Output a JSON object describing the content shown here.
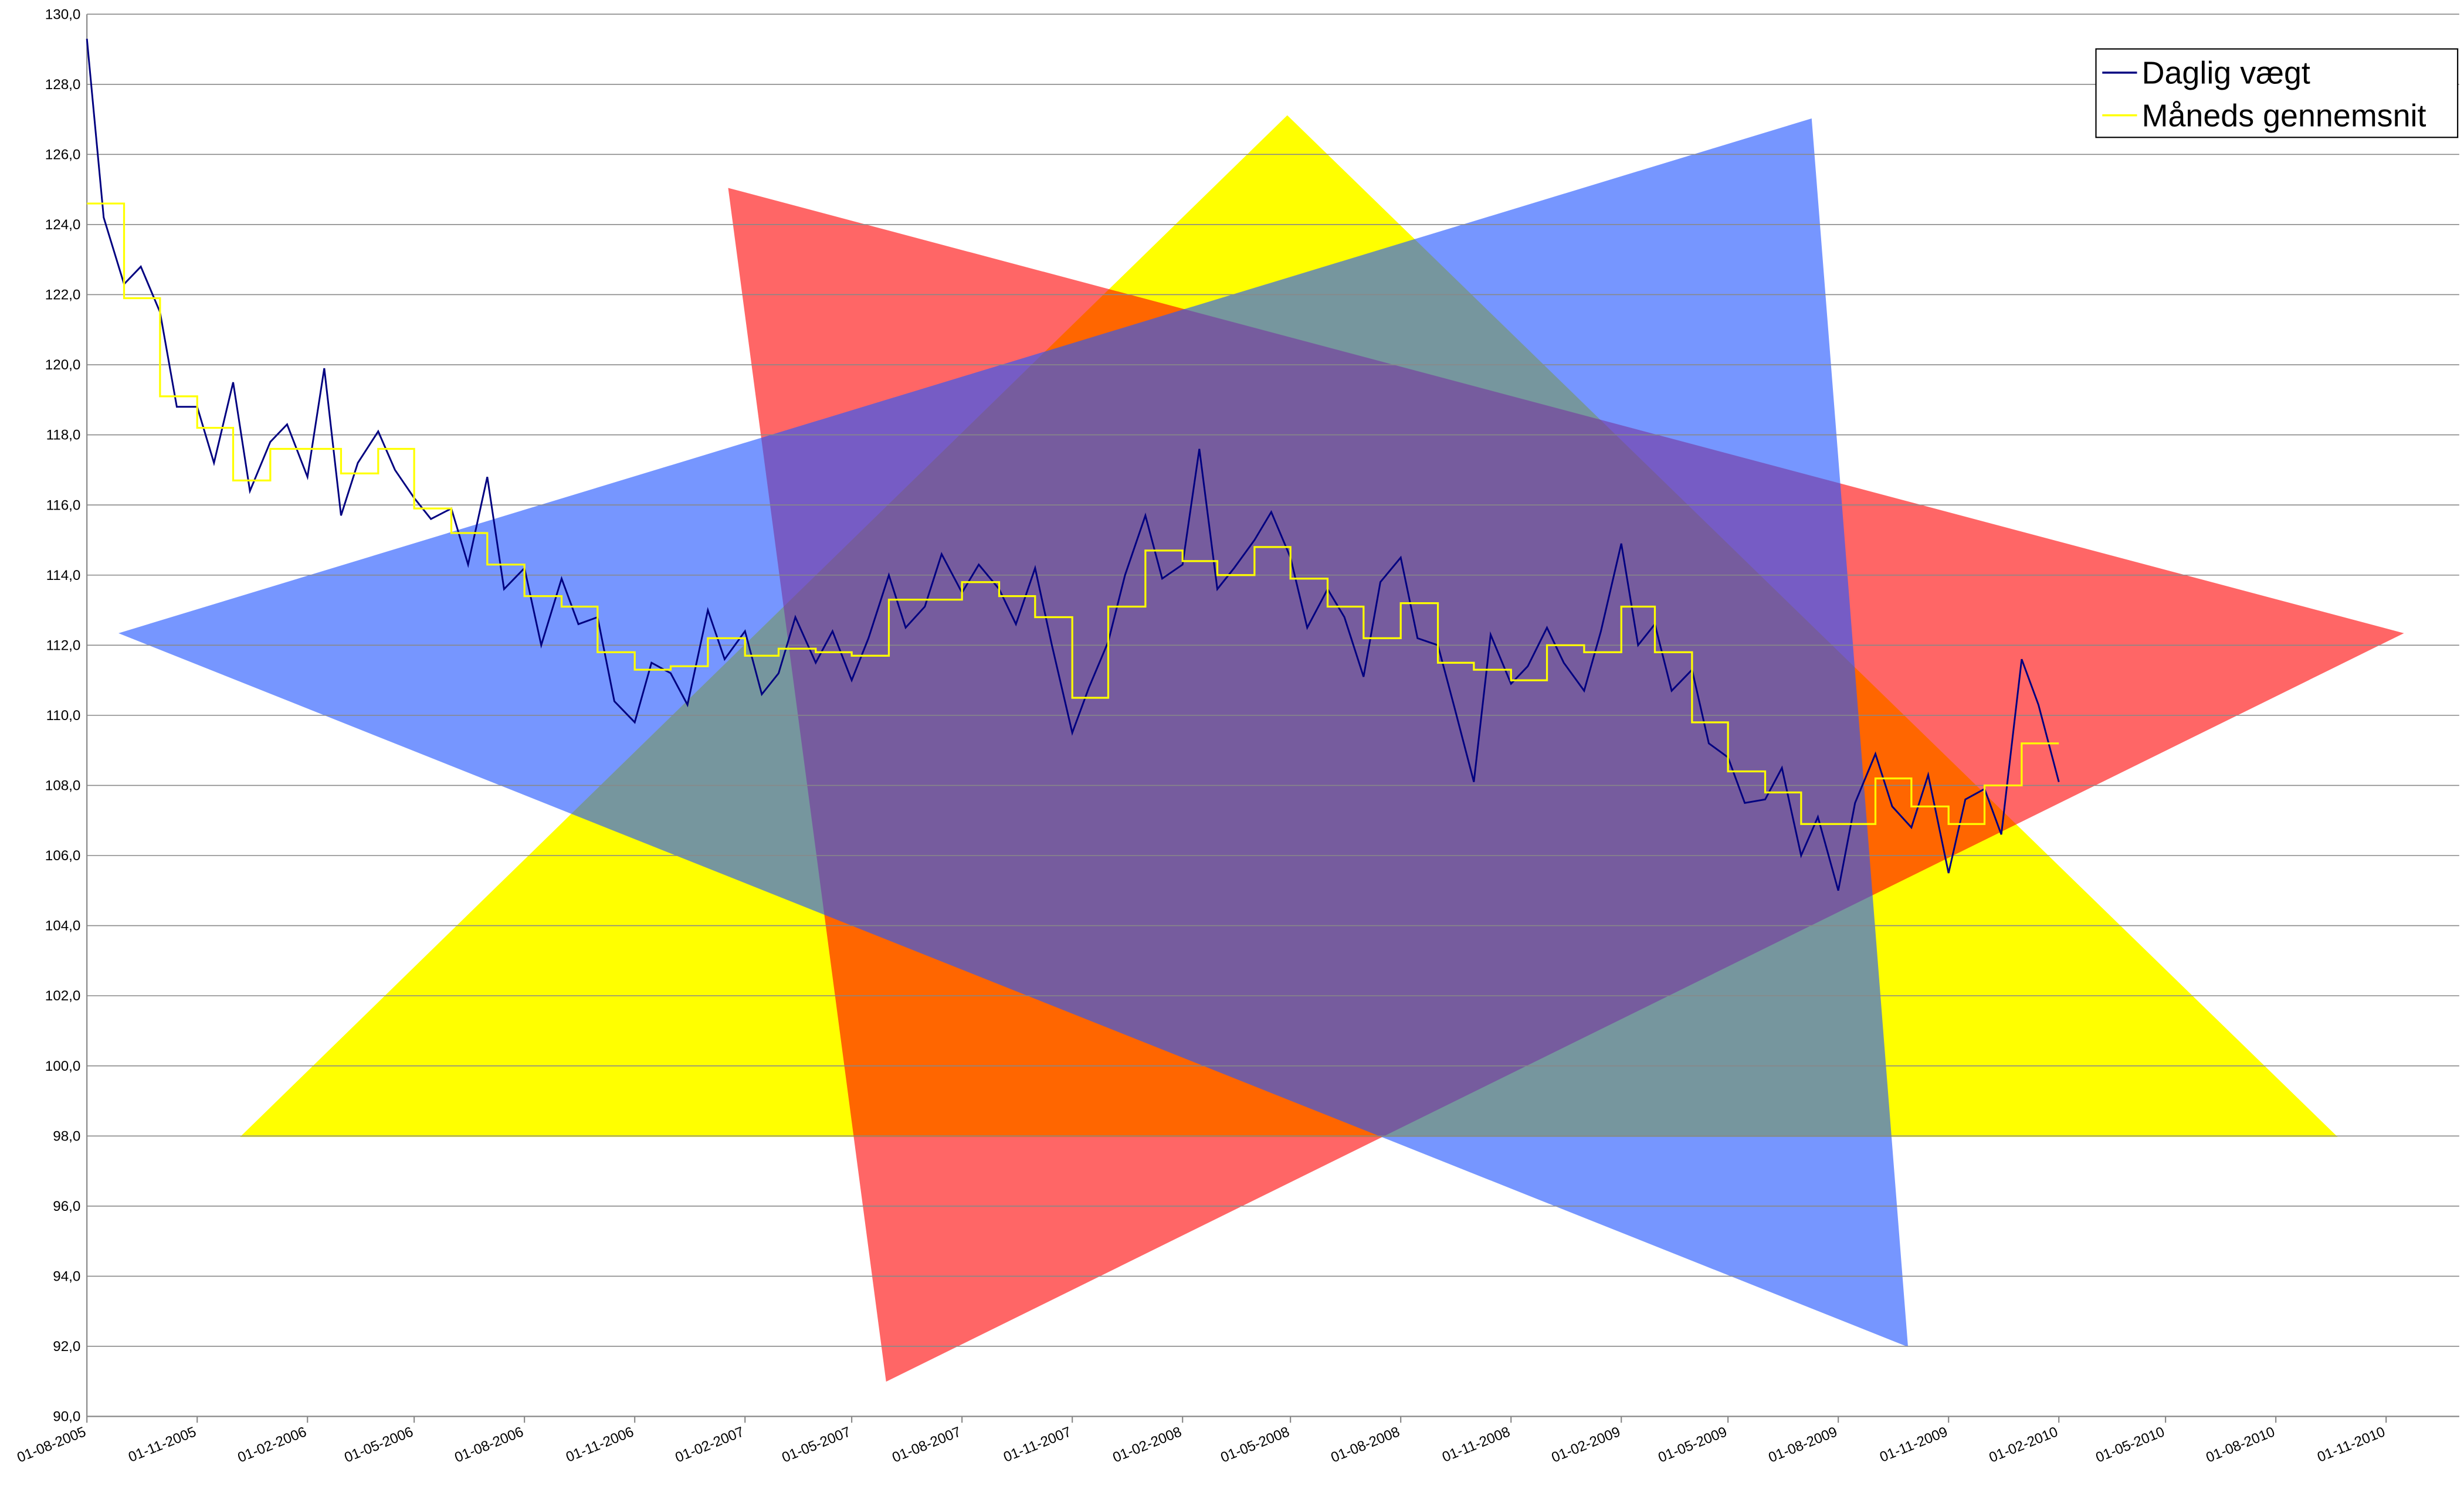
{
  "chart_data": {
    "type": "line",
    "series": [
      {
        "name": "Daglig vægt",
        "color": "#000080",
        "x": [
          "01-08-2005",
          "15-08-2005",
          "01-09-2005",
          "15-09-2005",
          "01-10-2005",
          "15-10-2005",
          "01-11-2005",
          "15-11-2005",
          "01-12-2005",
          "15-12-2005",
          "01-01-2006",
          "15-01-2006",
          "01-02-2006",
          "15-02-2006",
          "01-03-2006",
          "15-03-2006",
          "01-04-2006",
          "15-04-2006",
          "01-05-2006",
          "15-05-2006",
          "01-06-2006",
          "15-06-2006",
          "01-07-2006",
          "15-07-2006",
          "01-08-2006",
          "15-08-2006",
          "01-09-2006",
          "15-09-2006",
          "01-10-2006",
          "15-10-2006",
          "01-11-2006",
          "15-11-2006",
          "01-12-2006",
          "15-12-2006",
          "01-01-2007",
          "15-01-2007",
          "01-02-2007",
          "15-02-2007",
          "01-03-2007",
          "15-03-2007",
          "01-04-2007",
          "15-04-2007",
          "01-05-2007",
          "15-05-2007",
          "01-06-2007",
          "15-06-2007",
          "01-07-2007",
          "15-07-2007",
          "01-08-2007",
          "15-08-2007",
          "01-09-2007",
          "15-09-2007",
          "01-10-2007",
          "15-10-2007",
          "01-11-2007",
          "15-11-2007",
          "01-12-2007",
          "15-12-2007",
          "01-01-2008",
          "15-01-2008",
          "01-02-2008",
          "15-02-2008",
          "01-03-2008",
          "15-03-2008",
          "01-04-2008",
          "15-04-2008",
          "01-05-2008",
          "15-05-2008",
          "01-06-2008",
          "15-06-2008",
          "01-07-2008",
          "15-07-2008",
          "01-08-2008",
          "15-08-2008",
          "01-09-2008",
          "15-09-2008",
          "01-10-2008",
          "15-10-2008",
          "01-11-2008",
          "15-11-2008",
          "01-12-2008",
          "15-12-2008",
          "01-01-2009",
          "15-01-2009",
          "01-02-2009",
          "15-02-2009",
          "01-03-2009",
          "15-03-2009",
          "01-04-2009",
          "15-04-2009",
          "01-05-2009",
          "15-05-2009",
          "01-06-2009",
          "15-06-2009",
          "01-07-2009",
          "15-07-2009",
          "01-08-2009",
          "15-08-2009",
          "01-09-2009",
          "15-09-2009",
          "01-10-2009",
          "15-10-2009",
          "01-11-2009",
          "15-11-2009",
          "01-12-2009",
          "15-12-2009",
          "01-01-2010",
          "15-01-2010",
          "01-02-2010"
        ],
        "values": [
          129.3,
          124.2,
          122.3,
          122.8,
          121.5,
          118.8,
          118.8,
          117.2,
          119.5,
          116.4,
          117.8,
          118.3,
          116.8,
          119.9,
          115.7,
          117.2,
          118.1,
          117.0,
          116.2,
          115.6,
          115.9,
          114.3,
          116.8,
          113.6,
          114.2,
          112.0,
          113.9,
          112.6,
          112.8,
          110.4,
          109.8,
          111.5,
          111.2,
          110.3,
          113.0,
          111.6,
          112.4,
          110.6,
          111.2,
          112.8,
          111.5,
          112.4,
          111.0,
          112.2,
          114.0,
          112.5,
          113.1,
          114.6,
          113.5,
          114.3,
          113.6,
          112.6,
          114.2,
          112.0,
          109.5,
          110.8,
          112.1,
          114.0,
          115.7,
          113.9,
          114.3,
          117.6,
          113.6,
          114.2,
          115.0,
          115.8,
          114.5,
          112.5,
          113.6,
          112.8,
          111.1,
          113.8,
          114.5,
          112.2,
          112.0,
          110.2,
          108.1,
          112.3,
          110.9,
          111.4,
          112.5,
          111.5,
          110.7,
          112.4,
          114.9,
          112.0,
          112.6,
          110.7,
          111.3,
          109.2,
          108.8,
          107.5,
          107.6,
          108.5,
          106.0,
          107.1,
          105.0,
          107.5,
          108.9,
          107.4,
          106.8,
          108.3,
          105.5,
          107.6,
          107.9,
          106.6,
          111.6,
          110.3,
          108.1
        ]
      },
      {
        "name": "Måneds gennemsnit",
        "color": "#ffff00",
        "step": true,
        "x": [
          "01-08-2005",
          "01-09-2005",
          "01-10-2005",
          "01-11-2005",
          "01-12-2005",
          "01-01-2006",
          "01-02-2006",
          "01-03-2006",
          "01-04-2006",
          "01-05-2006",
          "01-06-2006",
          "01-07-2006",
          "01-08-2006",
          "01-09-2006",
          "01-10-2006",
          "01-11-2006",
          "01-12-2006",
          "01-01-2007",
          "01-02-2007",
          "01-03-2007",
          "01-04-2007",
          "01-05-2007",
          "01-06-2007",
          "01-07-2007",
          "01-08-2007",
          "01-09-2007",
          "01-10-2007",
          "01-11-2007",
          "01-12-2007",
          "01-01-2008",
          "01-02-2008",
          "01-03-2008",
          "01-04-2008",
          "01-05-2008",
          "01-06-2008",
          "01-07-2008",
          "01-08-2008",
          "01-09-2008",
          "01-10-2008",
          "01-11-2008",
          "01-12-2008",
          "01-01-2009",
          "01-02-2009",
          "01-03-2009",
          "01-04-2009",
          "01-05-2009",
          "01-06-2009",
          "01-07-2009",
          "01-08-2009",
          "01-09-2009",
          "01-10-2009",
          "01-11-2009",
          "01-12-2009",
          "01-01-2010"
        ],
        "values": [
          124.6,
          121.9,
          119.1,
          118.2,
          116.7,
          117.6,
          117.6,
          116.9,
          117.6,
          115.9,
          115.2,
          114.3,
          113.4,
          113.1,
          111.8,
          111.3,
          111.4,
          112.2,
          111.7,
          111.9,
          111.8,
          111.7,
          113.3,
          113.3,
          113.8,
          113.4,
          112.8,
          110.5,
          113.1,
          114.7,
          114.4,
          114.0,
          114.8,
          113.9,
          113.1,
          112.2,
          113.2,
          111.5,
          111.3,
          111.0,
          112.0,
          111.8,
          113.1,
          111.8,
          109.8,
          108.4,
          107.8,
          106.9,
          106.9,
          108.2,
          107.4,
          106.9,
          108.0,
          109.2
        ]
      }
    ],
    "xlim": [
      "01-08-2005",
      "01-01-2011"
    ],
    "xticks": [
      "01-08-2005",
      "01-11-2005",
      "01-02-2006",
      "01-05-2006",
      "01-08-2006",
      "01-11-2006",
      "01-02-2007",
      "01-05-2007",
      "01-08-2007",
      "01-11-2007",
      "01-02-2008",
      "01-05-2008",
      "01-08-2008",
      "01-11-2008",
      "01-02-2009",
      "01-05-2009",
      "01-08-2009",
      "01-11-2009",
      "01-02-2010",
      "01-05-2010",
      "01-08-2010",
      "01-11-2010"
    ],
    "ylim": [
      90,
      130
    ],
    "yticks": [
      {
        "value": 90,
        "label": "90,0"
      },
      {
        "value": 92,
        "label": "92,0"
      },
      {
        "value": 94,
        "label": "94,0"
      },
      {
        "value": 96,
        "label": "96,0"
      },
      {
        "value": 98,
        "label": "98,0"
      },
      {
        "value": 100,
        "label": "100,0"
      },
      {
        "value": 102,
        "label": "102,0"
      },
      {
        "value": 104,
        "label": "104,0"
      },
      {
        "value": 106,
        "label": "106,0"
      },
      {
        "value": 108,
        "label": "108,0"
      },
      {
        "value": 110,
        "label": "110,0"
      },
      {
        "value": 112,
        "label": "112,0"
      },
      {
        "value": 114,
        "label": "114,0"
      },
      {
        "value": 116,
        "label": "116,0"
      },
      {
        "value": 118,
        "label": "118,0"
      },
      {
        "value": 120,
        "label": "120,0"
      },
      {
        "value": 122,
        "label": "122,0"
      },
      {
        "value": 124,
        "label": "124,0"
      },
      {
        "value": 126,
        "label": "126,0"
      },
      {
        "value": 128,
        "label": "128,0"
      },
      {
        "value": 130,
        "label": "130,0"
      }
    ],
    "grid": true,
    "legend": "top-right"
  }
}
